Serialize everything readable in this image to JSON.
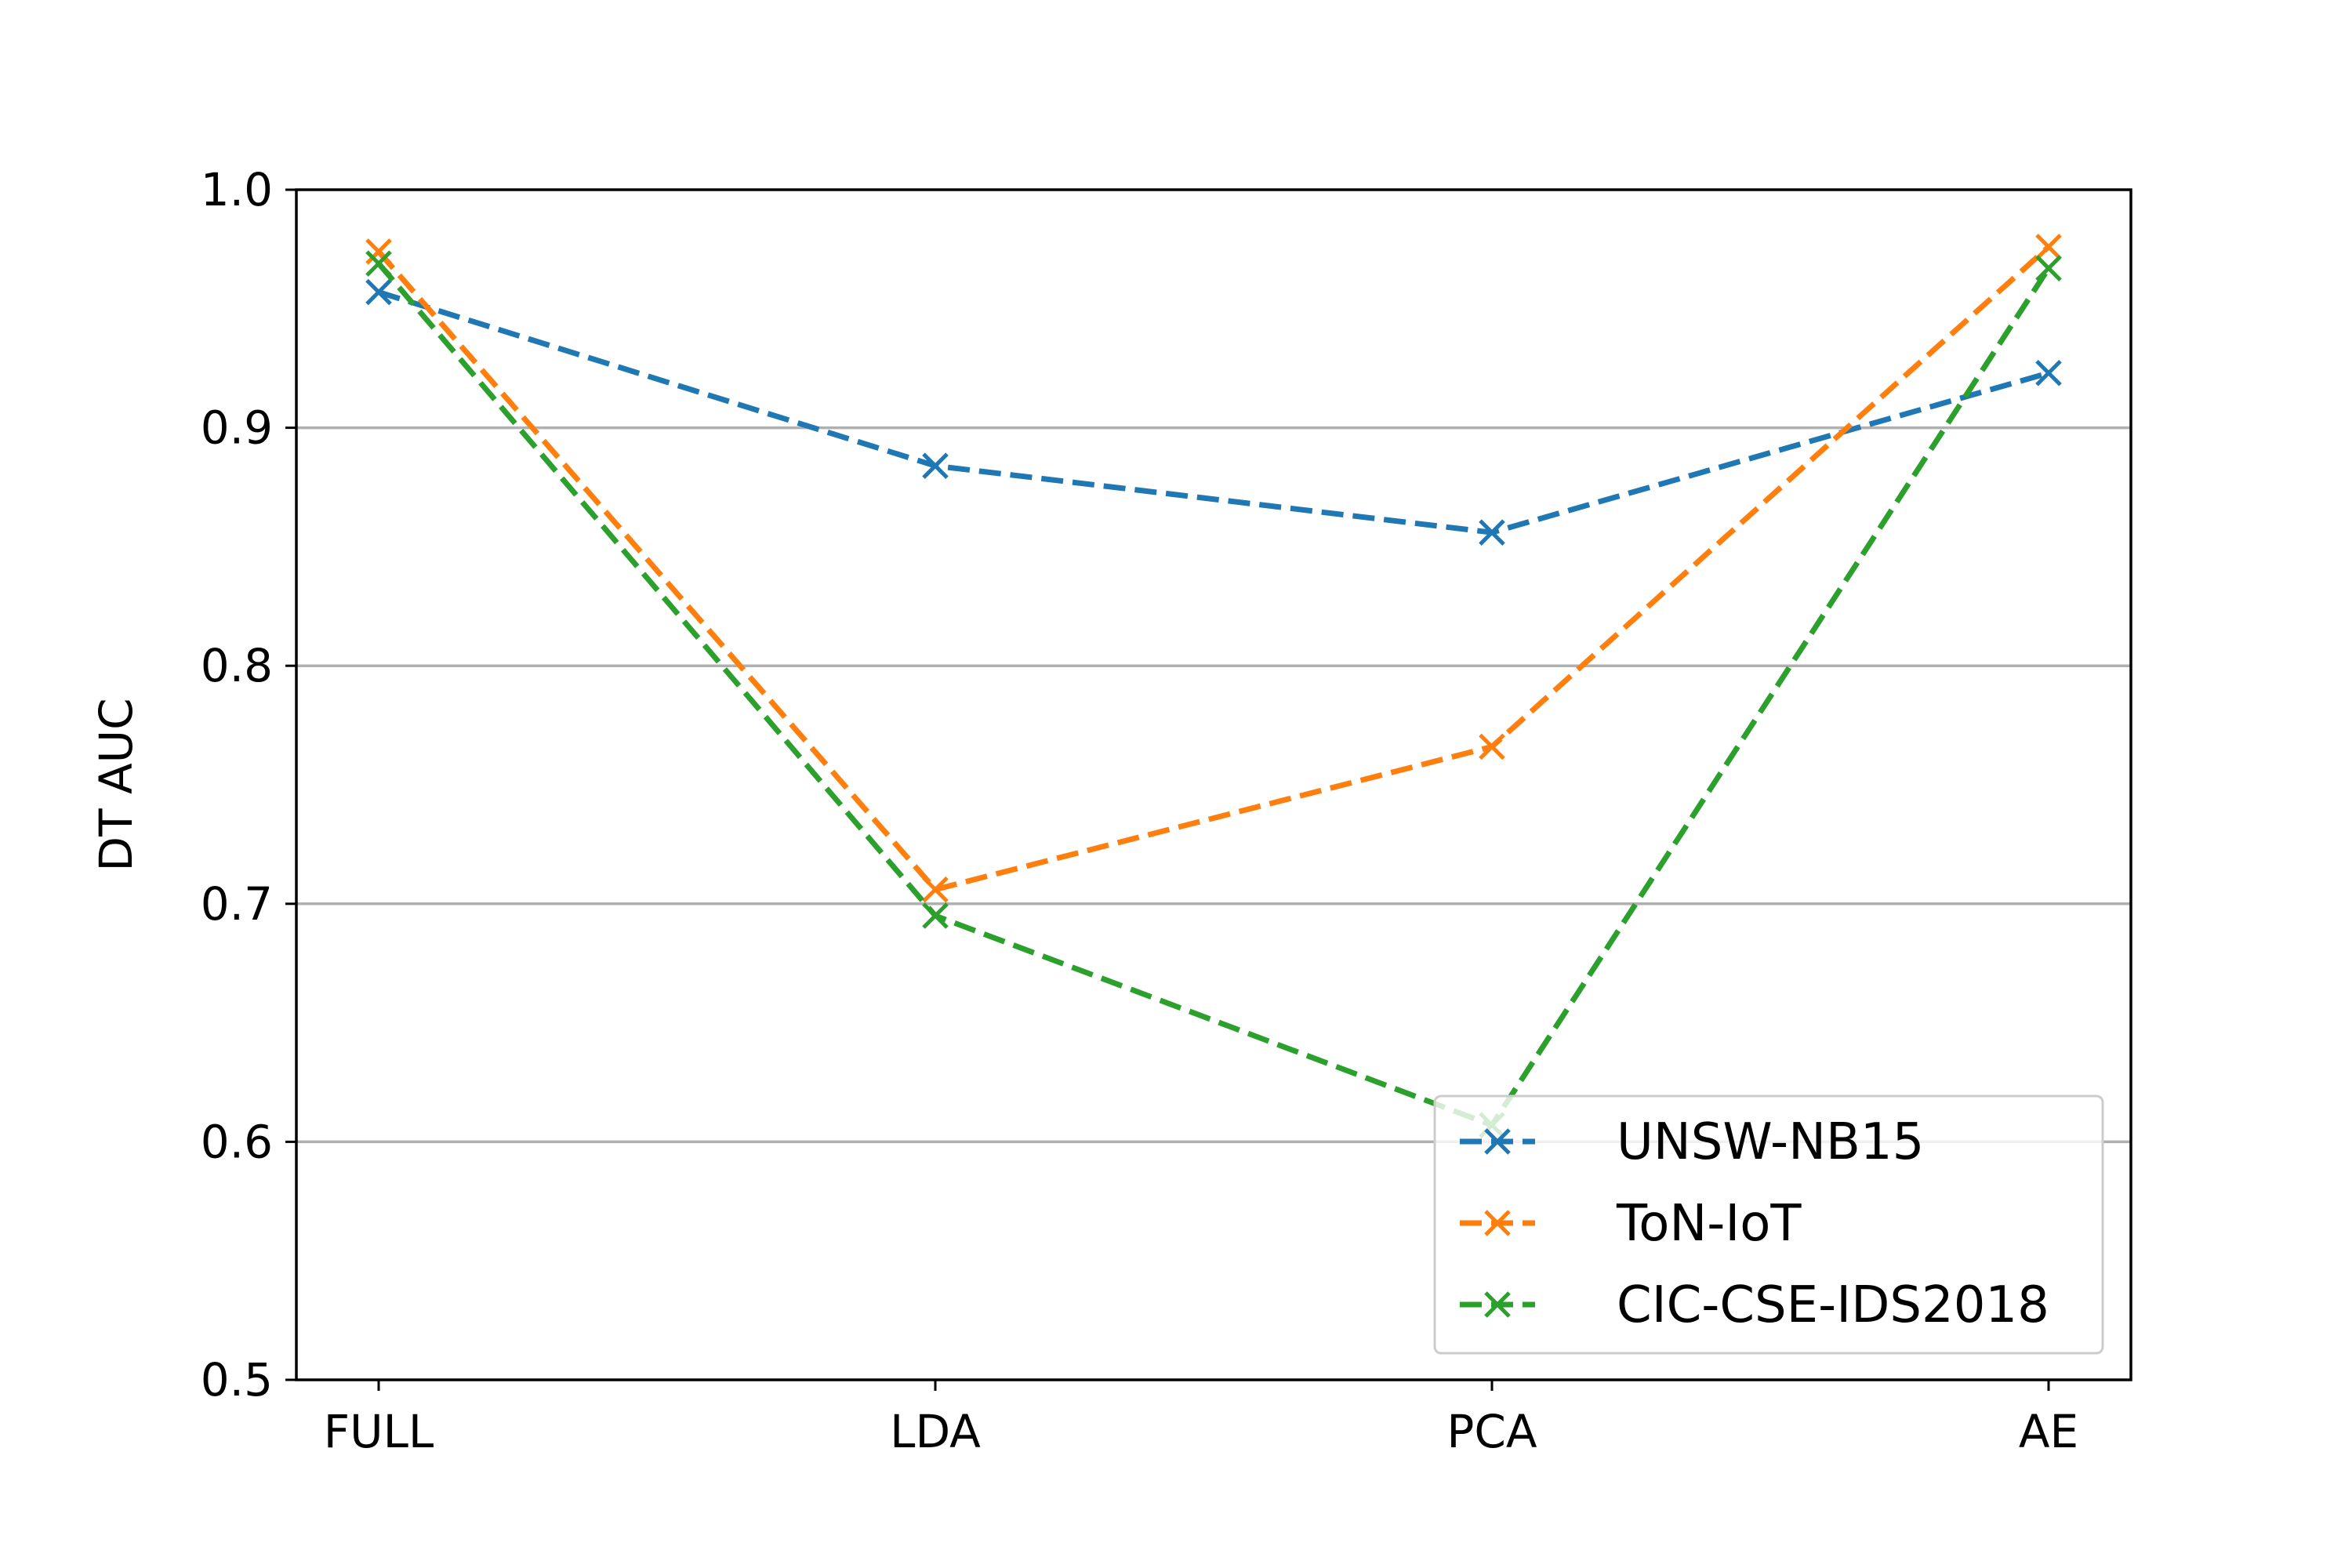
{
  "chart_data": {
    "type": "line",
    "title": "",
    "xlabel": "",
    "ylabel": "DT AUC",
    "categories": [
      "FULL",
      "LDA",
      "PCA",
      "AE"
    ],
    "ylim": [
      0.5,
      1.0
    ],
    "yticks": [
      "0.5",
      "0.6",
      "0.7",
      "0.8",
      "0.9",
      "1.0"
    ],
    "ytick_values": [
      0.5,
      0.6,
      0.7,
      0.8,
      0.9,
      1.0
    ],
    "grid": "y-major",
    "legend_position": "lower-right",
    "marker": "x",
    "linestyle": "dashed",
    "series": [
      {
        "name": "UNSW-NB15",
        "color": "#1f77b4",
        "values": [
          0.957,
          0.884,
          0.856,
          0.923
        ]
      },
      {
        "name": "ToN-IoT",
        "color": "#ff7f0e",
        "values": [
          0.974,
          0.706,
          0.766,
          0.976
        ]
      },
      {
        "name": "CIC-CSE-IDS2018",
        "color": "#2ca02c",
        "values": [
          0.969,
          0.695,
          0.607,
          0.967
        ]
      }
    ]
  }
}
